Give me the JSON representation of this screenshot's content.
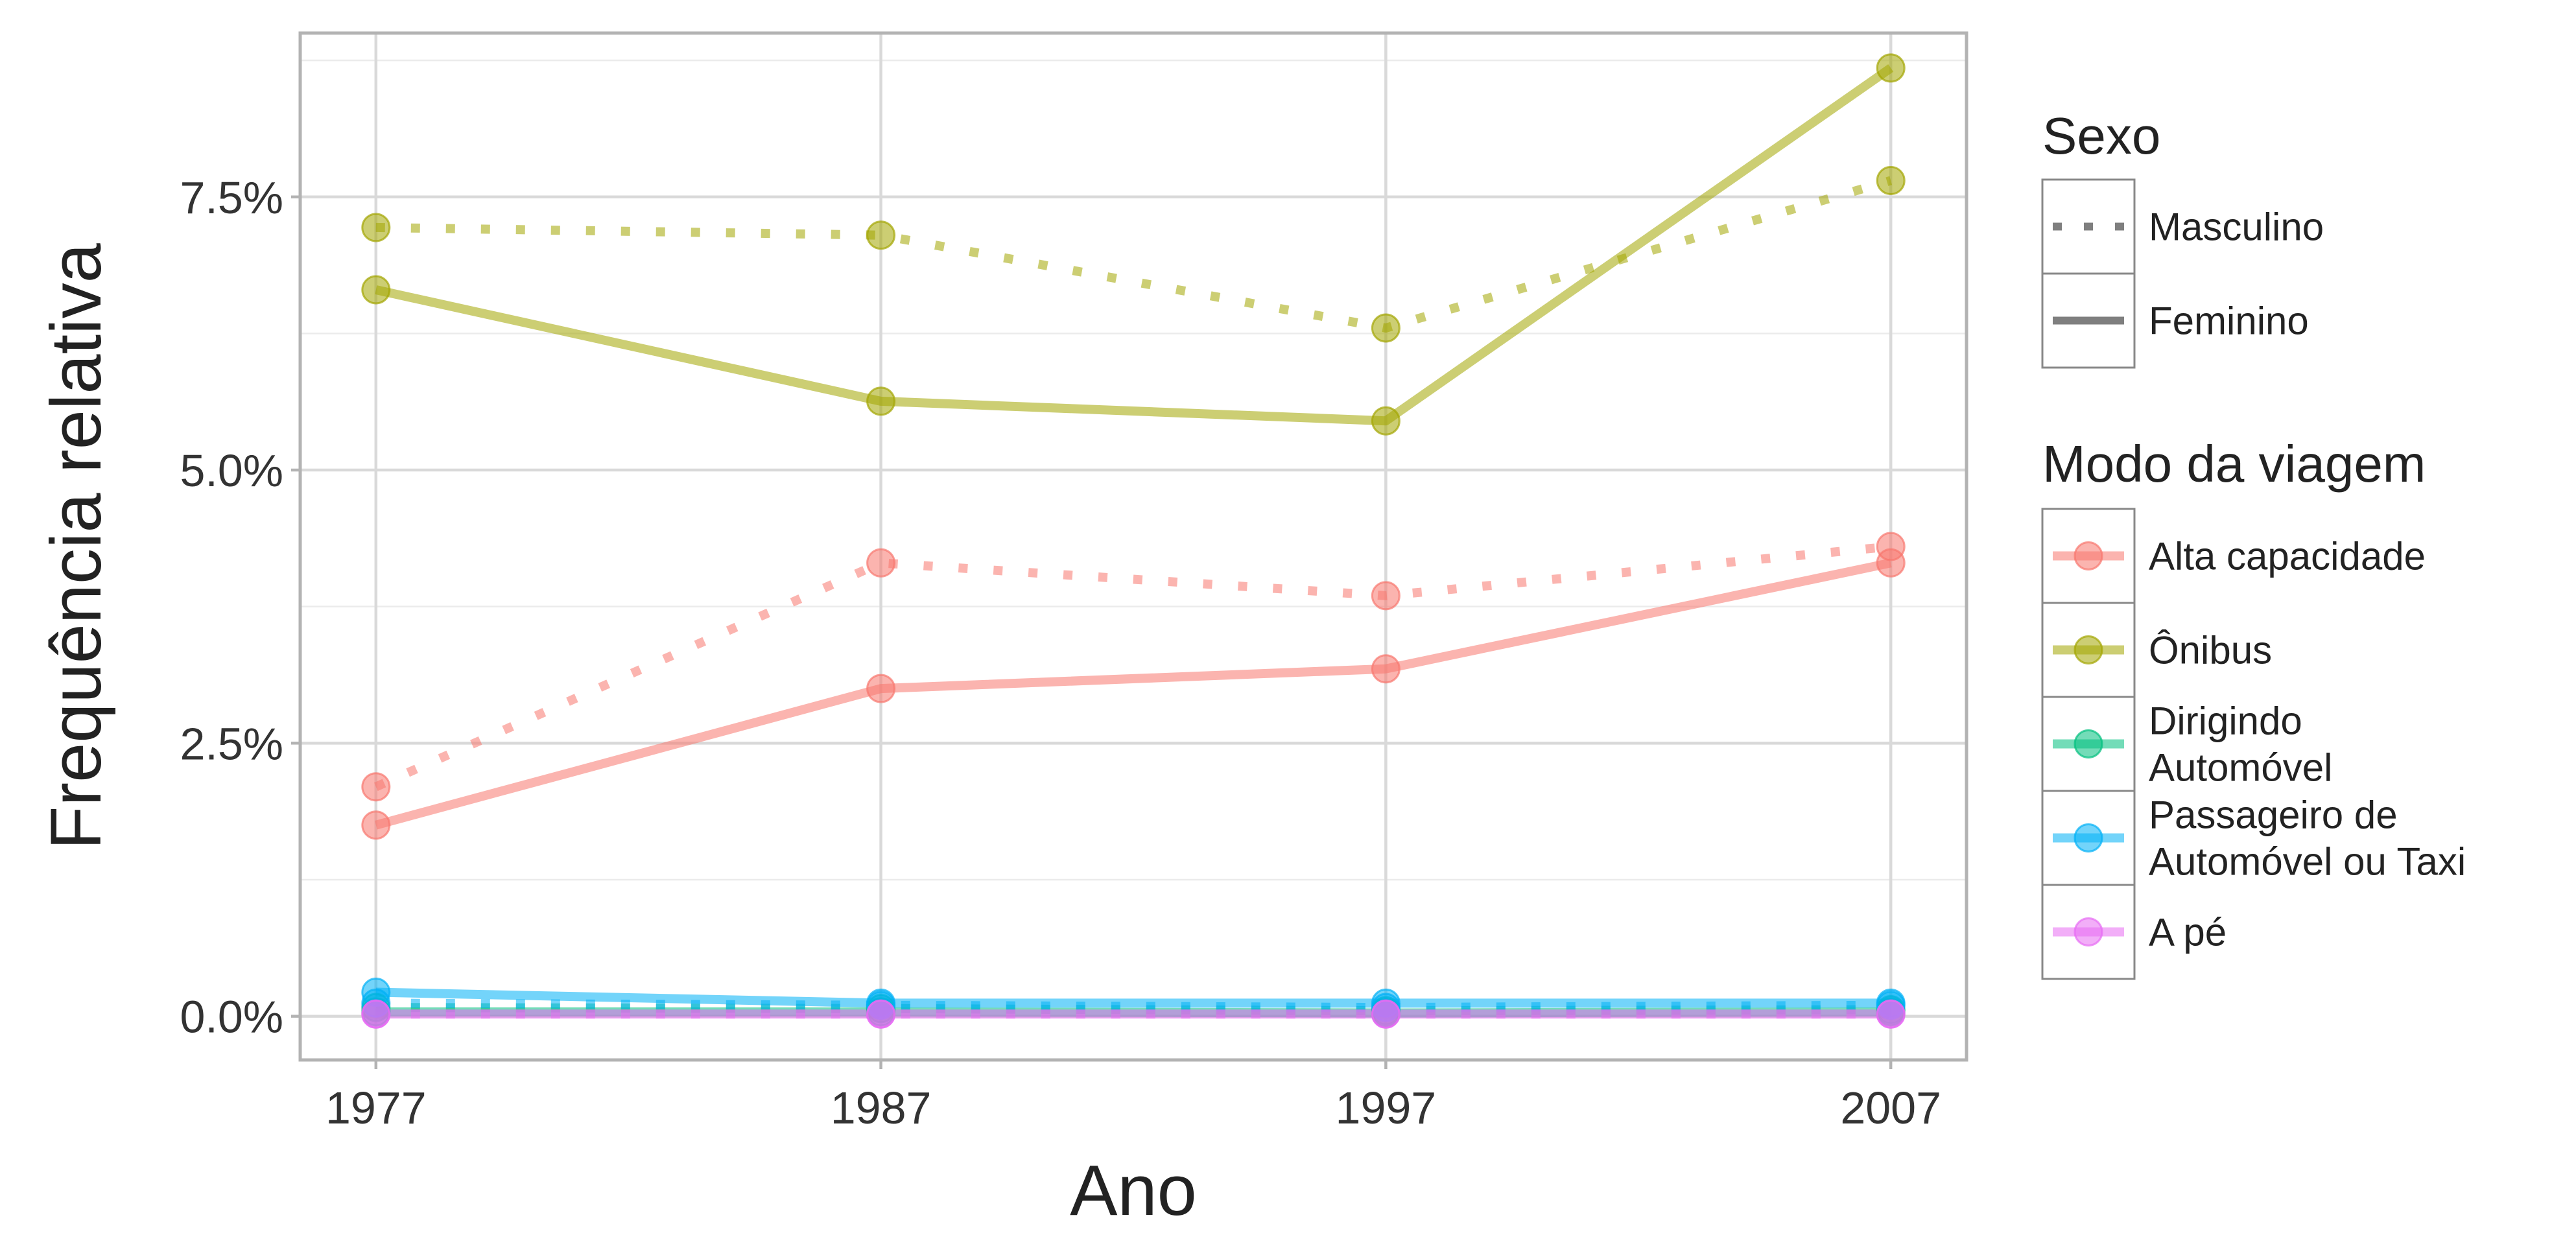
{
  "chart_data": {
    "type": "line",
    "title": "",
    "xlabel": "Ano",
    "ylabel": "Frequência relativa",
    "x": [
      1977,
      1987,
      1997,
      2007
    ],
    "x_tick_labels": [
      "1977",
      "1987",
      "1997",
      "2007"
    ],
    "y_ticks": [
      0,
      2.5,
      5,
      7.5
    ],
    "y_tick_labels": [
      "0.0%",
      "2.5%",
      "5.0%",
      "7.5%"
    ],
    "ylim": [
      -0.4,
      9.0
    ],
    "xlim": [
      1975.5,
      2008.5
    ],
    "grid": true,
    "legend_position": "right",
    "legend": {
      "sexo_title": "Sexo",
      "sexo": [
        {
          "key": "masculino",
          "label": "Masculino",
          "dash": "dotted"
        },
        {
          "key": "feminino",
          "label": "Feminino",
          "dash": "solid"
        }
      ],
      "modo_title": "Modo da viagem",
      "modo": [
        {
          "key": "alta",
          "label_lines": [
            "Alta capacidade"
          ],
          "color": "#F8766D"
        },
        {
          "key": "onibus",
          "label_lines": [
            "Ônibus"
          ],
          "color": "#A3A500"
        },
        {
          "key": "dirigindo",
          "label_lines": [
            "Dirigindo",
            "Automóvel"
          ],
          "color": "#00BF7D"
        },
        {
          "key": "passageiro",
          "label_lines": [
            "Passageiro de",
            "Automóvel ou Taxi"
          ],
          "color": "#00B0F6"
        },
        {
          "key": "ape",
          "label_lines": [
            "A pé"
          ],
          "color": "#E76BF3"
        }
      ]
    },
    "series": [
      {
        "modo": "alta",
        "sexo": "masculino",
        "values": [
          2.1,
          4.15,
          3.85,
          4.3
        ]
      },
      {
        "modo": "alta",
        "sexo": "feminino",
        "values": [
          1.75,
          3.0,
          3.18,
          4.15
        ]
      },
      {
        "modo": "onibus",
        "sexo": "masculino",
        "values": [
          7.22,
          7.15,
          6.3,
          7.65
        ]
      },
      {
        "modo": "onibus",
        "sexo": "feminino",
        "values": [
          6.65,
          5.63,
          5.45,
          8.68
        ]
      },
      {
        "modo": "dirigindo",
        "sexo": "masculino",
        "values": [
          0.08,
          0.07,
          0.05,
          0.06
        ]
      },
      {
        "modo": "dirigindo",
        "sexo": "feminino",
        "values": [
          0.04,
          0.04,
          0.03,
          0.04
        ]
      },
      {
        "modo": "passageiro",
        "sexo": "masculino",
        "values": [
          0.12,
          0.1,
          0.08,
          0.1
        ]
      },
      {
        "modo": "passageiro",
        "sexo": "feminino",
        "values": [
          0.22,
          0.12,
          0.12,
          0.12
        ]
      },
      {
        "modo": "ape",
        "sexo": "masculino",
        "values": [
          0.02,
          0.02,
          0.02,
          0.02
        ]
      },
      {
        "modo": "ape",
        "sexo": "feminino",
        "values": [
          0.02,
          0.02,
          0.02,
          0.02
        ]
      }
    ]
  }
}
